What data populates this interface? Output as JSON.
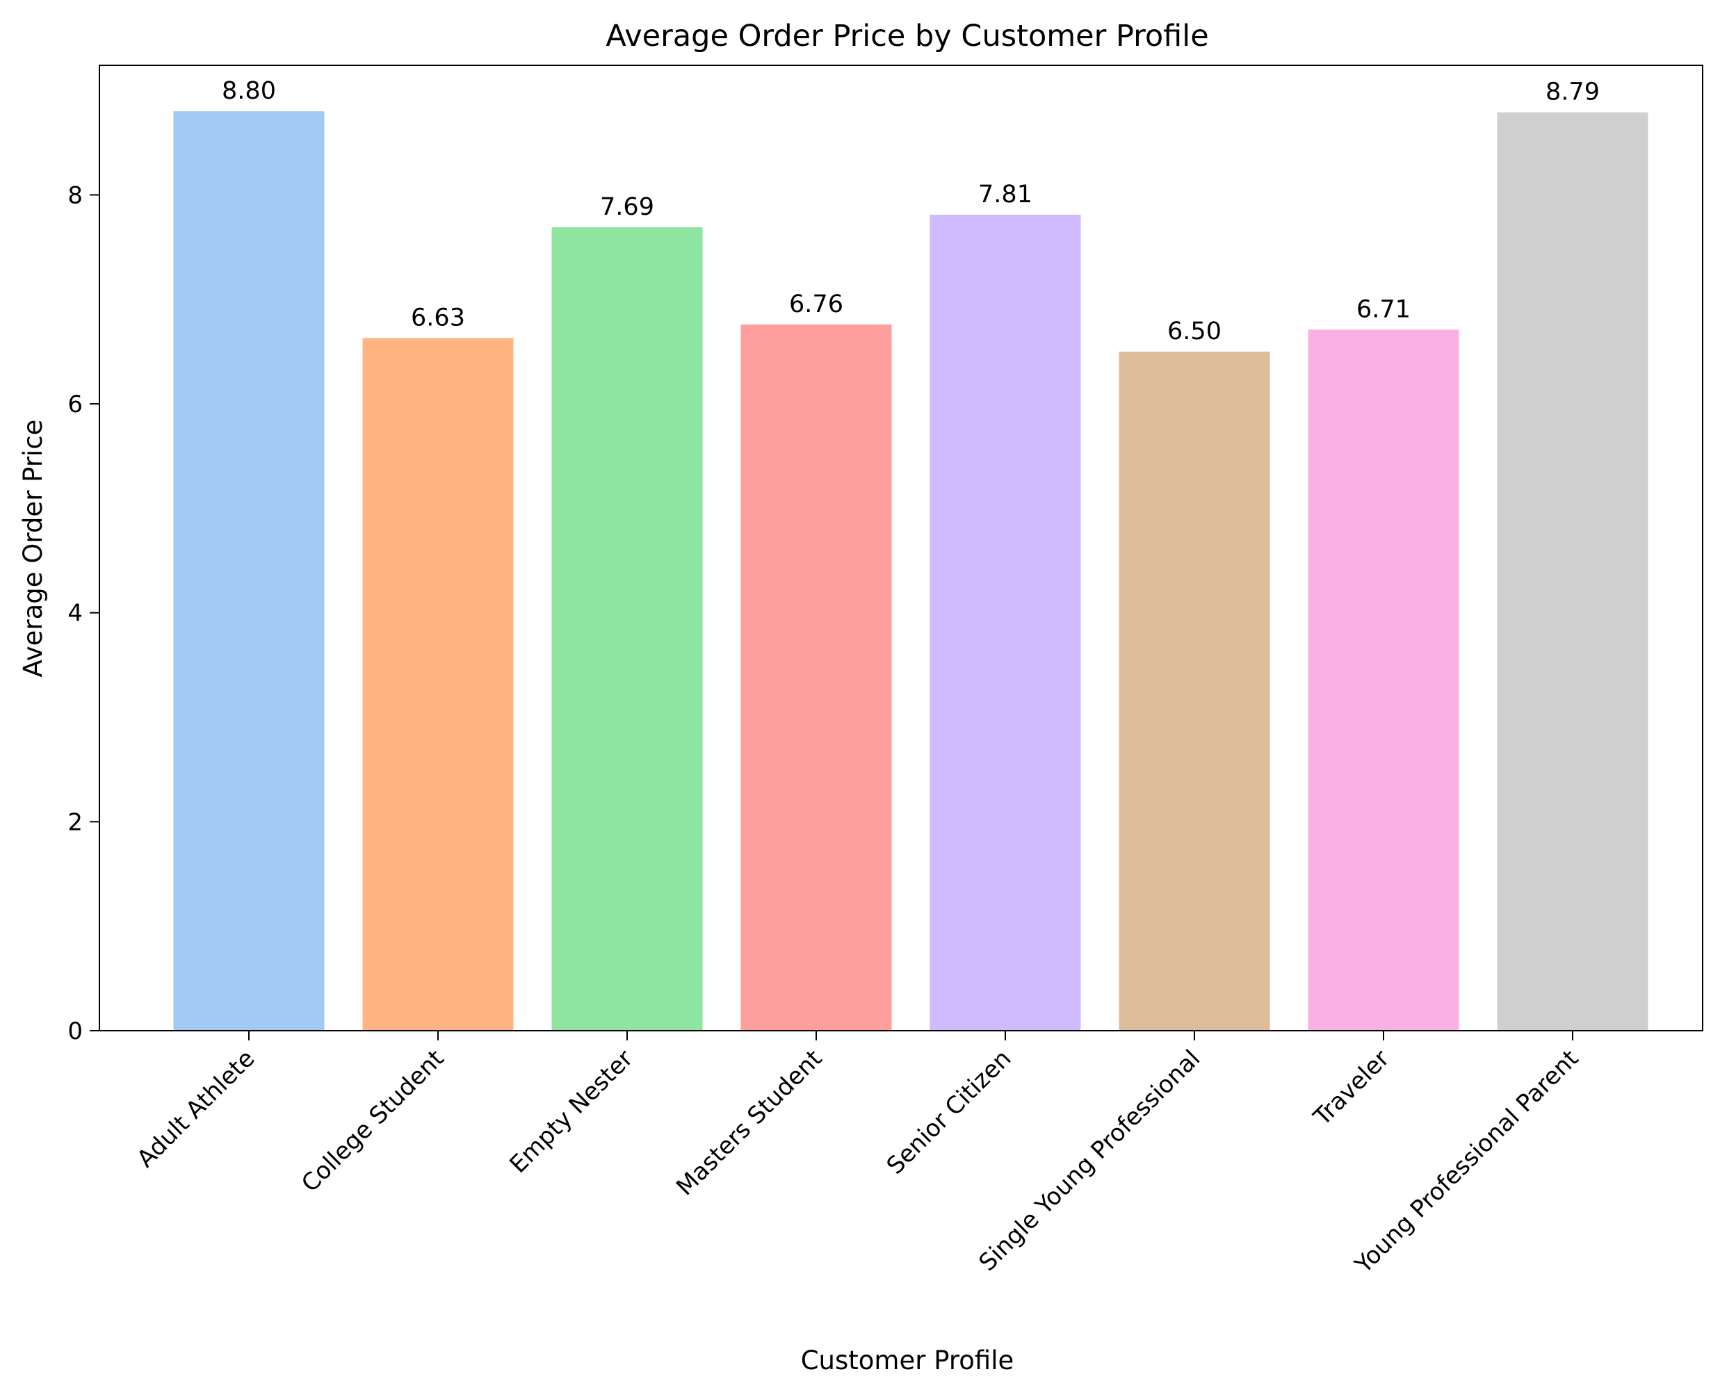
{
  "chart_data": {
    "type": "bar",
    "title": "Average Order Price by Customer Profile",
    "xlabel": "Customer Profile",
    "ylabel": "Average Order Price",
    "categories": [
      "Adult Athlete",
      "College Student",
      "Empty Nester",
      "Masters Student",
      "Senior Citizen",
      "Single Young Professional",
      "Traveler",
      "Young Professional Parent"
    ],
    "values": [
      8.8,
      6.63,
      7.69,
      6.76,
      7.81,
      6.5,
      6.71,
      8.79
    ],
    "value_labels": [
      "8.80",
      "6.63",
      "7.69",
      "6.76",
      "7.81",
      "6.50",
      "6.71",
      "8.79"
    ],
    "colors": [
      "#a1c9f4",
      "#ffb482",
      "#8de5a1",
      "#ff9f9b",
      "#d0bbff",
      "#debb9b",
      "#fab0e4",
      "#cfcfcf"
    ],
    "yticks": [
      0,
      2,
      4,
      6,
      8
    ],
    "ytick_labels": [
      "0",
      "2",
      "4",
      "6",
      "8"
    ],
    "ylim": [
      0,
      9.24
    ],
    "grid": false,
    "legend": "none"
  }
}
